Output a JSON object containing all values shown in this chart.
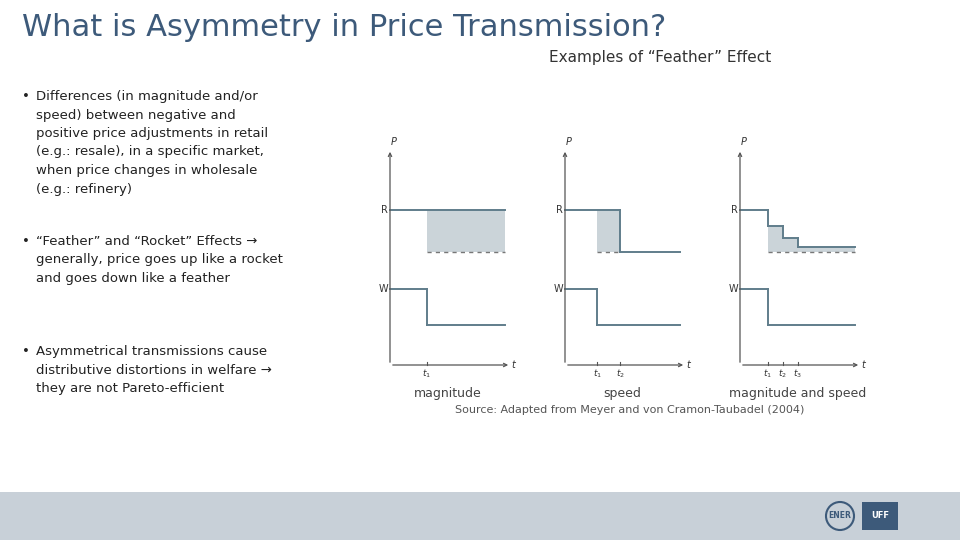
{
  "title": "What is Asymmetry in Price Transmission?",
  "title_color": "#3d5a7a",
  "title_fontsize": 22,
  "background_color": "#ffffff",
  "bullet_points": [
    "Differences (in magnitude and/or\nspeed) between negative and\npositive price adjustments in retail\n(e.g.: resale), in a specific market,\nwhen price changes in wholesale\n(e.g.: refinery)",
    "“Feather” and “Rocket” Effects →\ngenerally, price goes up like a rocket\nand goes down like a feather",
    "Asymmetrical transmissions cause\ndistributive distortions in welfare →\nthey are not Pareto-efficient"
  ],
  "bullet_fontsize": 9.5,
  "bullet_color": "#222222",
  "feather_title": "Examples of “Feather” Effect",
  "feather_title_fontsize": 11,
  "source_text": "Source: Adapted from Meyer and von Cramon-Taubadel (2004)",
  "source_fontsize": 8,
  "diagram_labels": [
    "magnitude",
    "speed",
    "magnitude and speed"
  ],
  "diagram_label_fontsize": 9,
  "line_color": "#607d8b",
  "fill_color": "#b0bec5",
  "dotted_color": "#777777",
  "bottom_bar_color": "#c8d0d8",
  "logo_color": "#3d5a7a"
}
